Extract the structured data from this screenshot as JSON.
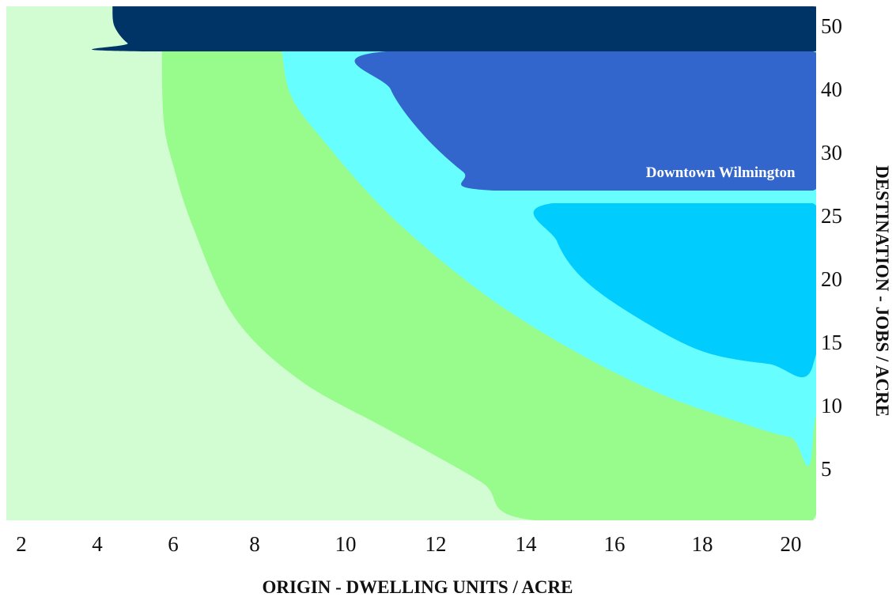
{
  "chart_data": {
    "type": "heatmap",
    "title": "",
    "xlabel": "ORIGIN - DWELLING UNITS / ACRE",
    "ylabel": "DESTINATION - JOBS / ACRE",
    "xlim": [
      1.4,
      20.5
    ],
    "ylim": [
      1,
      52
    ],
    "x_ticks": [
      2,
      4,
      6,
      8,
      10,
      12,
      14,
      16,
      18,
      20
    ],
    "y_ticks": [
      5,
      10,
      15,
      20,
      25,
      30,
      40,
      50
    ],
    "y_axis_position": "right",
    "grid": false,
    "legend": "none",
    "zones": [
      {
        "id": "zone-1",
        "color": "#d2fcd2",
        "boundary_x": [
          1.4,
          20.5,
          20.5,
          1.4
        ],
        "boundary_y": [
          1,
          1,
          52,
          52
        ]
      },
      {
        "id": "zone-2",
        "color": "#98fc8c",
        "boundary_x": [
          5.7,
          5.75,
          6.0,
          6.5,
          7.5,
          9.0,
          11.0,
          13.0,
          14.2,
          20.5,
          20.5,
          5.7
        ],
        "boundary_y": [
          46,
          35,
          29,
          24,
          17,
          12,
          8,
          4,
          1,
          1,
          46,
          46
        ]
      },
      {
        "id": "zone-3",
        "color": "#66fefe",
        "boundary_x": [
          8.6,
          8.8,
          9.5,
          11.0,
          13.0,
          15.0,
          17.0,
          19.0,
          20.0,
          20.5,
          20.5,
          8.6
        ],
        "boundary_y": [
          46,
          39,
          32,
          25,
          19,
          14.5,
          11,
          8.5,
          7.5,
          7.5,
          46,
          46
        ]
      },
      {
        "id": "zone-4",
        "color": "#00ccfe",
        "boundary_x": [
          14.6,
          14.7,
          15.3,
          16.5,
          18.0,
          19.5,
          20.5,
          20.5
        ],
        "boundary_y": [
          26,
          23,
          20,
          17,
          14.3,
          13.3,
          13.2,
          26
        ]
      },
      {
        "id": "zone-5",
        "color": "#3366cc",
        "boundary_x": [
          10.9,
          11.0,
          11.7,
          12.6,
          13.3,
          20.5,
          20.5
        ],
        "boundary_y": [
          46,
          40,
          33,
          28.5,
          27,
          27,
          46
        ]
      },
      {
        "id": "zone-6",
        "color": "#003366",
        "boundary_x": [
          4.4,
          4.45,
          4.8,
          5.3,
          20.5,
          20.5,
          4.4
        ],
        "boundary_y": [
          52,
          50,
          47.3,
          46,
          46,
          52,
          52
        ]
      }
    ],
    "annotations": [
      {
        "text": "Downtown Wilmington",
        "x": 20.1,
        "y": 28.5,
        "color": "#ffffff"
      }
    ]
  }
}
